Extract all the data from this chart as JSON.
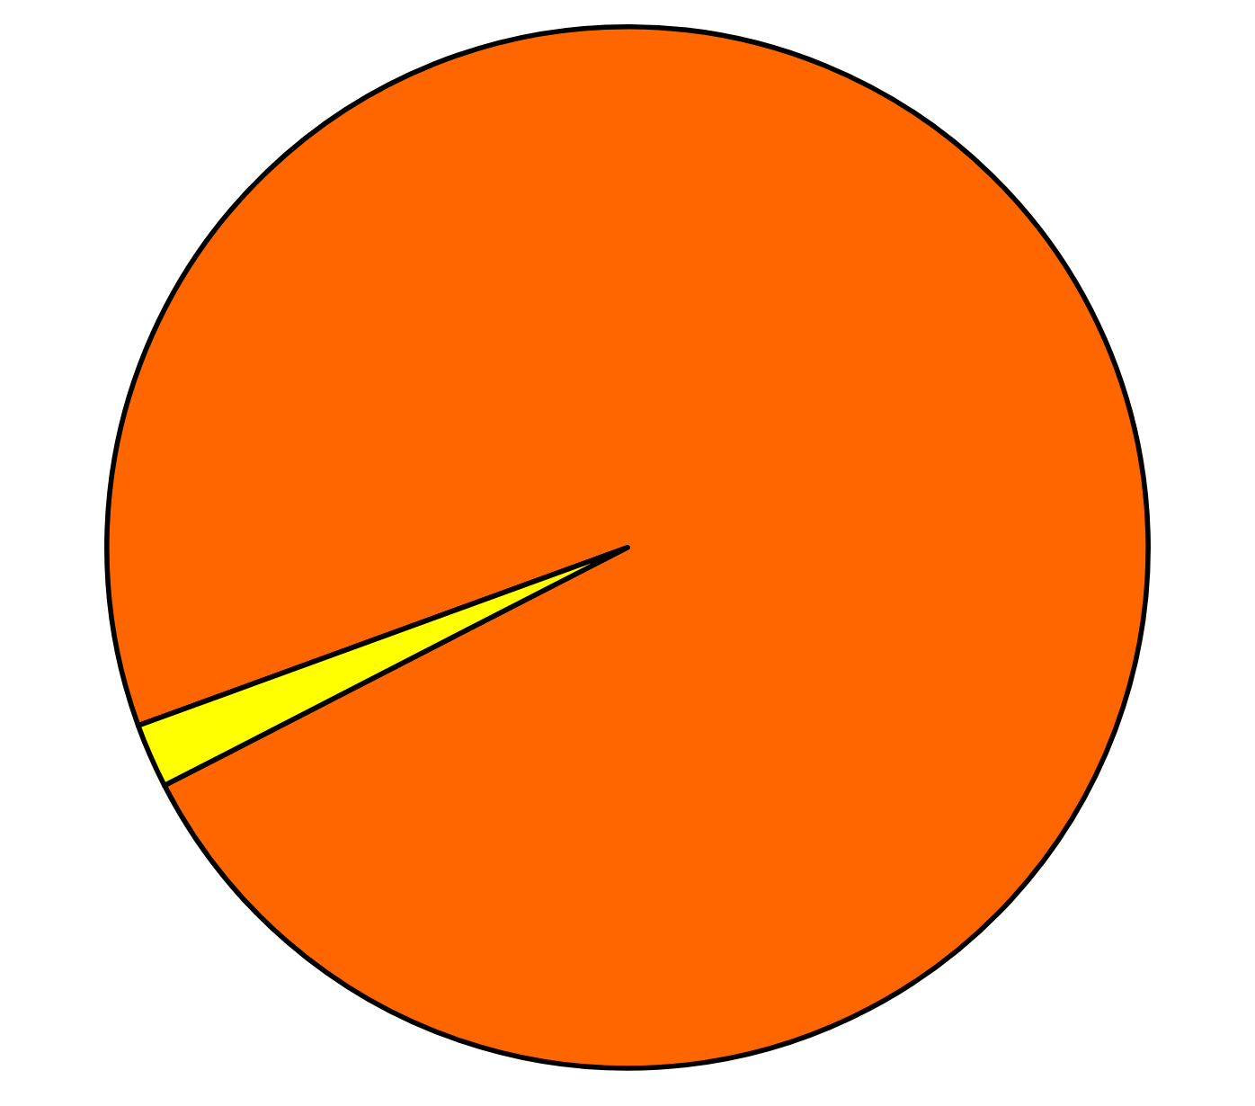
{
  "chart_data": {
    "type": "pie",
    "categories": [
      null,
      null
    ],
    "values": [
      98,
      2
    ],
    "colors": [
      "#ff6600",
      "#ffff00"
    ],
    "legend": false
  }
}
